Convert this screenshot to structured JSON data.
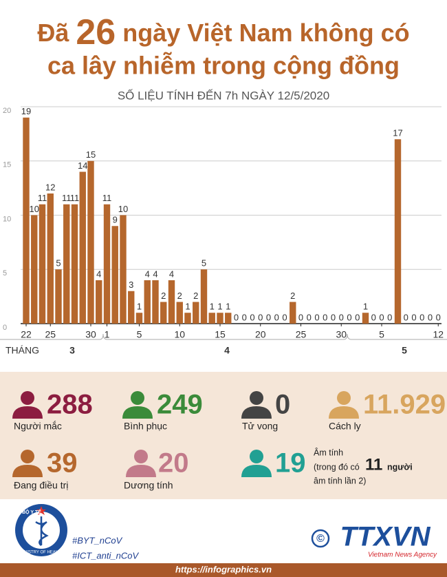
{
  "header": {
    "pre": "Đã",
    "number": "26",
    "post": "ngày Việt Nam không có",
    "line2": "ca lây nhiễm trong cộng đồng",
    "subtitle": "SỐ LIỆU TÍNH ĐẾN 7h NGÀY 12/5/2020"
  },
  "chart_data": {
    "type": "bar",
    "color": "#b5672d",
    "ylim": [
      0,
      20
    ],
    "yticks": [
      0,
      5,
      10,
      15,
      20
    ],
    "grid": true,
    "categories": [
      "22",
      null,
      null,
      "25",
      null,
      null,
      null,
      null,
      "30",
      null,
      "1",
      null,
      null,
      null,
      "5",
      null,
      null,
      null,
      null,
      "10",
      null,
      null,
      null,
      null,
      "15",
      null,
      null,
      null,
      null,
      "20",
      null,
      null,
      null,
      null,
      "25",
      null,
      null,
      null,
      null,
      "30",
      null,
      null,
      null,
      null,
      "5",
      null,
      null,
      null,
      null,
      null,
      null,
      "12"
    ],
    "values": [
      19,
      10,
      11,
      12,
      5,
      11,
      11,
      14,
      15,
      4,
      11,
      9,
      10,
      3,
      1,
      4,
      4,
      2,
      4,
      2,
      1,
      2,
      5,
      1,
      1,
      1,
      0,
      0,
      0,
      0,
      0,
      0,
      0,
      2,
      0,
      0,
      0,
      0,
      0,
      0,
      0,
      0,
      1,
      0,
      0,
      0,
      17,
      0,
      0,
      0,
      0,
      0
    ],
    "month_axis_label": "THÁNG",
    "months": [
      "3",
      "4",
      "5"
    ]
  },
  "stats": [
    {
      "number": "288",
      "label": "Người mắc",
      "color": "#8c1d40"
    },
    {
      "number": "249",
      "label": "Bình phục",
      "color": "#3b8b3a"
    },
    {
      "number": "0",
      "label": "Tử vong",
      "color": "#444444"
    },
    {
      "number": "11.929",
      "label": "Cách ly",
      "color": "#d8a55e"
    },
    {
      "number": "39",
      "label": "Đang điều trị",
      "color": "#b5672d"
    },
    {
      "number": "20",
      "label": "Dương tính",
      "color": "#c27a8a"
    },
    {
      "number": "19",
      "label": "Âm tính",
      "color": "#21a093",
      "note_1": "(trong đó có",
      "highlight": "11",
      "note_2": "người",
      "note_3": "âm tính lần 2)"
    }
  ],
  "footer": {
    "logo_top": "BỘ Y TẾ",
    "logo_bottom": "MINISTRY OF HEALTH",
    "hashtags": [
      "#BYT_nCoV",
      "#ICT_anti_nCoV"
    ],
    "copyright": "©",
    "agency": "TTXVN",
    "agency_en": "Vietnam News Agency",
    "url": "https://infographics.vn"
  }
}
